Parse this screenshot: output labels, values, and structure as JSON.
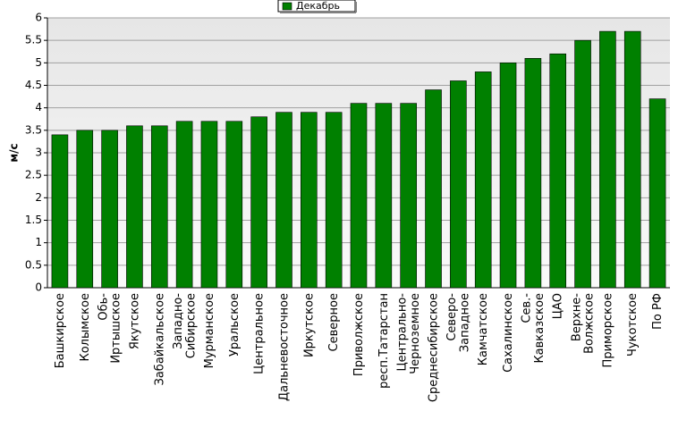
{
  "chart_data": {
    "type": "bar",
    "y_label": "м/с",
    "categories": [
      "Башкирское",
      "Колымское",
      "Обь-\nИртышское",
      "Якутское",
      "Забайкальское",
      "Западно-\nСибирское",
      "Мурманское",
      "Уральское",
      "Центральное",
      "Дальневосточное",
      "Иркутское",
      "Северное",
      "Приволжское",
      "респ.Татарстан",
      "Центрально-\nЧерноземное",
      "Среднесибирское",
      "Северо-\nЗападное",
      "Камчатское",
      "Сахалинское",
      "Сев.-\nКавказское",
      "ЦАО",
      "Верхне-\nВолжское",
      "Приморское",
      "Чукотское",
      "По РФ"
    ],
    "series": [
      {
        "name": "Декабрь",
        "color": "#008000",
        "values": [
          3.4,
          3.5,
          3.5,
          3.6,
          3.6,
          3.7,
          3.7,
          3.7,
          3.8,
          3.9,
          3.9,
          3.9,
          4.1,
          4.1,
          4.1,
          4.4,
          4.6,
          4.8,
          5.0,
          5.1,
          5.2,
          5.5,
          5.7,
          5.7,
          4.2
        ]
      }
    ],
    "ylim": [
      0,
      6
    ],
    "yticks": [
      0,
      0.5,
      1,
      1.5,
      2,
      2.5,
      3,
      3.5,
      4,
      4.5,
      5,
      5.5,
      6
    ],
    "grid": true,
    "legend": "top"
  }
}
